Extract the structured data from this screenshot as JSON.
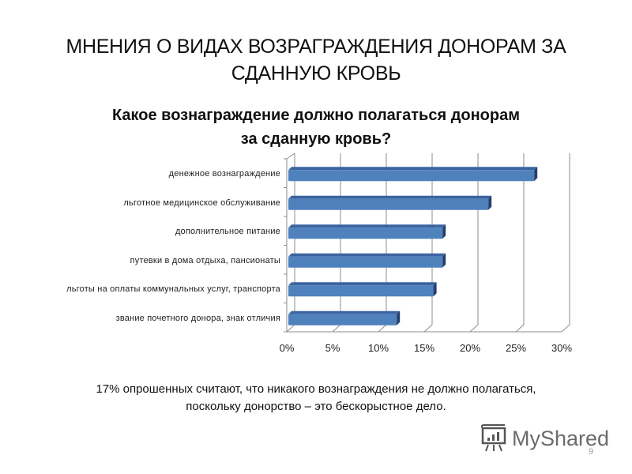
{
  "slide": {
    "title_line1": "МНЕНИЯ О ВИДАХ ВОЗРАГРАЖДЕНИЯ ДОНОРАМ ЗА",
    "title_line2": "СДАННУЮ КРОВЬ",
    "note_line1": "17% опрошенных считают, что никакого вознаграждения не должно полагаться,",
    "note_line2": "поскольку донорство – это бескорыстное дело.",
    "logo_text": "MyShared",
    "page_number": "9"
  },
  "chart_data": {
    "type": "bar",
    "orientation": "horizontal",
    "style": "3d-clustered-bar",
    "title_line1": "Какое вознаграждение должно полагаться донорам",
    "title_line2": "за сданную кровь?",
    "categories": [
      "денежное вознаграждение",
      "льготное медицинское обслуживание",
      "дополнительное питание",
      "путевки в дома отдыха, пансионаты",
      "льготы на оплаты коммунальных услуг, транспорта",
      "звание почетного донора, знак отличия"
    ],
    "values": [
      27,
      22,
      17,
      17,
      16,
      12
    ],
    "unit": "%",
    "xlabel": "",
    "ylabel": "",
    "xlim": [
      0,
      30
    ],
    "x_ticks": [
      "0%",
      "5%",
      "10%",
      "15%",
      "20%",
      "25%",
      "30%"
    ],
    "grid": "vertical",
    "legend": "none",
    "colors": {
      "bar_front": "#4f81bd",
      "bar_top": "#3b64a0",
      "bar_end": "#243f6b",
      "grid": "#8c8c8c"
    }
  }
}
